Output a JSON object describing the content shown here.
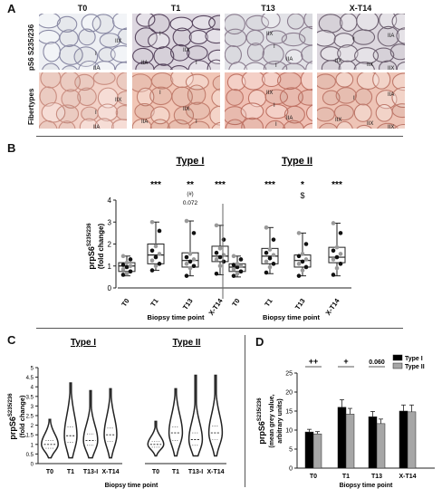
{
  "panelA": {
    "letter": "A",
    "columns": [
      "T0",
      "T1",
      "T13",
      "X-T14"
    ],
    "rows": [
      "pS6 S235/236",
      "Fibertypes"
    ],
    "tiles": [
      [
        {
          "labels": [
            "I",
            "IIX",
            "IIA"
          ]
        },
        {
          "labels": [
            "I",
            "IIX",
            "IIA",
            "I"
          ]
        },
        {
          "labels": [
            "IIX",
            "I",
            "IIA",
            "I"
          ]
        },
        {
          "labels": [
            "IIA",
            "I",
            "IIX",
            "IIX",
            "IIX"
          ]
        }
      ],
      [
        {
          "labels": [
            "I",
            "IIX",
            "IIA"
          ]
        },
        {
          "labels": [
            "I",
            "IIX",
            "IIA",
            "I"
          ]
        },
        {
          "labels": [
            "IIX",
            "I",
            "IIA",
            "I"
          ]
        },
        {
          "labels": [
            "IIA",
            "I",
            "IIX",
            "IIX",
            "IIX"
          ]
        }
      ]
    ]
  },
  "panelB": {
    "letter": "B",
    "groups": [
      "Type I",
      "Type II"
    ],
    "ylabel_main": "prpS6",
    "ylabel_sup": "S235/236",
    "ylabel_sub": "(fold change)",
    "xlabel": "Biopsy time point",
    "categories": [
      "T0",
      "T1",
      "T13",
      "X-T14"
    ],
    "yticks": [
      "0",
      "1",
      "2",
      "3",
      "4"
    ],
    "sig_typeI": [
      "",
      "***",
      "**",
      "***"
    ],
    "sig_typeI_extra": [
      "",
      "",
      "(#)",
      ""
    ],
    "sig_typeI_p": [
      "",
      "",
      "0.072",
      ""
    ],
    "sig_typeII": [
      "",
      "***",
      "*",
      "***"
    ],
    "sig_typeII_extra": [
      "",
      "",
      "$",
      ""
    ]
  },
  "panelC": {
    "letter": "C",
    "groups": [
      "Type I",
      "Type II"
    ],
    "ylabel_main": "prpS6",
    "ylabel_sup": "S235/236",
    "ylabel_sub": "(fold change)",
    "xlabel": "Biopsy time point",
    "categories": [
      "T0",
      "T1",
      "T13-I",
      "X-T14"
    ],
    "yticks": [
      "0",
      "0.5",
      "1",
      "1.5",
      "2",
      "2.5",
      "3",
      "3.5",
      "4",
      "4.5",
      "5"
    ]
  },
  "panelD": {
    "letter": "D",
    "ylabel_main": "prpS6",
    "ylabel_sup": "S235/236",
    "ylabel_sub": "(mean grey value,",
    "ylabel_sub2": "arbitrary units)",
    "xlabel": "Biopsy time point",
    "legend": [
      "Type I",
      "Type II"
    ],
    "sig": [
      "++",
      "+",
      "0.060",
      ""
    ],
    "yticks": [
      "0",
      "5",
      "10",
      "15",
      "20",
      "25"
    ],
    "colors": {
      "typeI": "#000000",
      "typeII": "#a6a6a6"
    }
  },
  "chart_data": [
    {
      "type": "box",
      "panel": "B",
      "title": "Type I",
      "categories": [
        "T0",
        "T1",
        "T13",
        "X-T14"
      ],
      "ylim": [
        0,
        4
      ],
      "ylabel": "prpS6 S235/236 (fold change)",
      "xlabel": "Biopsy time point",
      "boxes": [
        {
          "min": 0.55,
          "q1": 0.75,
          "median": 1.0,
          "q3": 1.15,
          "max": 1.45
        },
        {
          "min": 0.8,
          "q1": 1.1,
          "median": 1.5,
          "q3": 2.0,
          "max": 3.0
        },
        {
          "min": 0.55,
          "q1": 0.95,
          "median": 1.25,
          "q3": 1.6,
          "max": 3.05
        },
        {
          "min": 0.6,
          "q1": 1.2,
          "median": 1.45,
          "q3": 1.9,
          "max": 2.85
        }
      ],
      "points": [
        [
          0.6,
          0.65,
          0.75,
          0.85,
          0.95,
          1.0,
          1.05,
          1.15,
          1.3,
          1.45
        ],
        [
          0.8,
          1.0,
          1.1,
          1.25,
          1.4,
          1.55,
          1.7,
          1.9,
          2.6,
          3.0
        ],
        [
          0.55,
          0.9,
          1.0,
          1.1,
          1.2,
          1.3,
          1.4,
          1.55,
          2.5,
          3.05
        ],
        [
          0.65,
          1.0,
          1.2,
          1.3,
          1.4,
          1.5,
          1.6,
          1.8,
          2.2,
          2.85
        ]
      ]
    },
    {
      "type": "box",
      "panel": "B",
      "title": "Type II",
      "categories": [
        "T0",
        "T1",
        "T13",
        "X-T14"
      ],
      "ylim": [
        0,
        4
      ],
      "boxes": [
        {
          "min": 0.5,
          "q1": 0.75,
          "median": 0.95,
          "q3": 1.1,
          "max": 1.45
        },
        {
          "min": 0.65,
          "q1": 1.1,
          "median": 1.45,
          "q3": 1.8,
          "max": 2.75
        },
        {
          "min": 0.55,
          "q1": 0.95,
          "median": 1.25,
          "q3": 1.5,
          "max": 2.5
        },
        {
          "min": 0.55,
          "q1": 1.15,
          "median": 1.4,
          "q3": 1.85,
          "max": 2.95
        }
      ],
      "points": [
        [
          0.55,
          0.65,
          0.75,
          0.85,
          0.95,
          1.0,
          1.05,
          1.1,
          1.3,
          1.45
        ],
        [
          0.7,
          0.95,
          1.1,
          1.2,
          1.35,
          1.5,
          1.6,
          1.75,
          2.2,
          2.75
        ],
        [
          0.55,
          0.8,
          0.95,
          1.1,
          1.2,
          1.3,
          1.45,
          1.55,
          2.0,
          2.5
        ],
        [
          0.6,
          0.9,
          1.1,
          1.3,
          1.4,
          1.55,
          1.7,
          1.85,
          2.5,
          2.95
        ]
      ]
    },
    {
      "type": "violin",
      "panel": "C",
      "title": "Type I",
      "categories": [
        "T0",
        "T1",
        "T13-I",
        "X-T14"
      ],
      "ylim": [
        0,
        5
      ],
      "violins": [
        {
          "min": 0.3,
          "max": 2.3,
          "median": 1.0,
          "q1": 0.8,
          "q3": 1.2,
          "width": 0.8
        },
        {
          "min": 0.3,
          "max": 4.2,
          "median": 1.45,
          "q1": 1.1,
          "q3": 1.9,
          "width": 0.55
        },
        {
          "min": 0.3,
          "max": 3.8,
          "median": 1.2,
          "q1": 0.95,
          "q3": 1.55,
          "width": 0.65
        },
        {
          "min": 0.3,
          "max": 3.9,
          "median": 1.5,
          "q1": 1.15,
          "q3": 1.85,
          "width": 0.55
        }
      ]
    },
    {
      "type": "violin",
      "panel": "C",
      "title": "Type II",
      "categories": [
        "T0",
        "T1",
        "T13-I",
        "X-T14"
      ],
      "ylim": [
        0,
        5
      ],
      "violins": [
        {
          "min": 0.4,
          "max": 2.2,
          "median": 1.0,
          "q1": 0.85,
          "q3": 1.15,
          "width": 0.75
        },
        {
          "min": 0.4,
          "max": 3.9,
          "median": 1.6,
          "q1": 1.2,
          "q3": 1.9,
          "width": 0.6
        },
        {
          "min": 0.4,
          "max": 4.6,
          "median": 1.25,
          "q1": 0.95,
          "q3": 1.6,
          "width": 0.6
        },
        {
          "min": 0.4,
          "max": 4.6,
          "median": 1.6,
          "q1": 1.25,
          "q3": 1.95,
          "width": 0.6
        }
      ]
    },
    {
      "type": "bar",
      "panel": "D",
      "categories": [
        "T0",
        "T1",
        "T13",
        "X-T14"
      ],
      "ylim": [
        0,
        25
      ],
      "series": [
        {
          "name": "Type I",
          "values": [
            9.5,
            16.0,
            13.5,
            15.0
          ],
          "errors": [
            0.7,
            2.0,
            1.4,
            1.6
          ]
        },
        {
          "name": "Type II",
          "values": [
            9.0,
            14.2,
            11.7,
            14.8
          ],
          "errors": [
            0.6,
            1.5,
            1.2,
            1.8
          ]
        }
      ]
    }
  ]
}
